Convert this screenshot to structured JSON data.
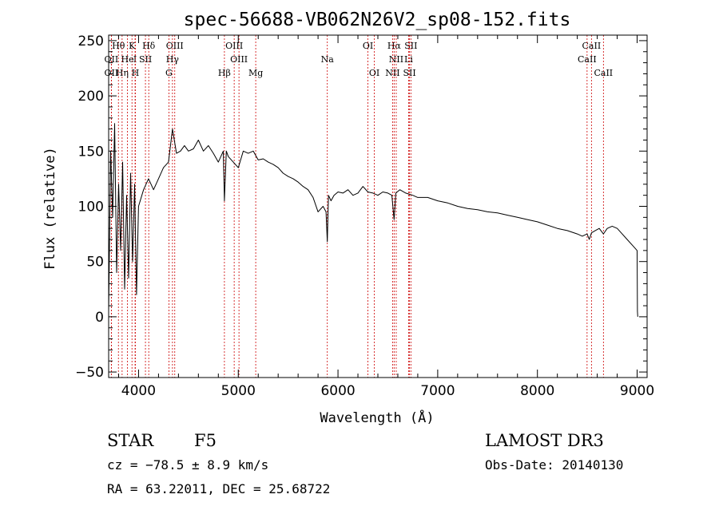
{
  "chart_data": {
    "type": "line",
    "title": "spec-56688-VB062N26V2_sp08-152.fits",
    "xlabel": "Wavelength (Å)",
    "ylabel": "Flux (relative)",
    "xlim": [
      3700,
      9100
    ],
    "ylim": [
      -55,
      255
    ],
    "xticks": [
      4000,
      5000,
      6000,
      7000,
      8000,
      9000
    ],
    "xtick_labels": [
      "4000",
      "5000",
      "6000",
      "7000",
      "8000",
      "9000"
    ],
    "yticks": [
      -50,
      0,
      50,
      100,
      150,
      200,
      250
    ],
    "ytick_labels": [
      "−50",
      "0",
      "50",
      "100",
      "150",
      "200",
      "250"
    ],
    "series": [
      {
        "name": "spectrum",
        "x": [
          3700,
          3720,
          3740,
          3760,
          3780,
          3800,
          3820,
          3840,
          3860,
          3880,
          3900,
          3920,
          3940,
          3960,
          3980,
          4000,
          4050,
          4100,
          4150,
          4200,
          4250,
          4300,
          4340,
          4380,
          4420,
          4460,
          4500,
          4550,
          4600,
          4650,
          4700,
          4750,
          4800,
          4850,
          4861,
          4880,
          4900,
          4950,
          5000,
          5050,
          5100,
          5150,
          5200,
          5250,
          5300,
          5350,
          5400,
          5450,
          5500,
          5550,
          5600,
          5650,
          5700,
          5750,
          5800,
          5850,
          5880,
          5893,
          5905,
          5930,
          5960,
          6000,
          6050,
          6100,
          6150,
          6200,
          6250,
          6300,
          6350,
          6400,
          6450,
          6500,
          6540,
          6563,
          6580,
          6620,
          6680,
          6750,
          6800,
          6900,
          7000,
          7100,
          7200,
          7300,
          7400,
          7500,
          7600,
          7700,
          7800,
          7900,
          8000,
          8100,
          8200,
          8300,
          8400,
          8450,
          8498,
          8520,
          8542,
          8580,
          8620,
          8662,
          8700,
          8750,
          8800,
          8850,
          8900,
          8950,
          8980,
          9000,
          9003,
          9006
        ],
        "values": [
          5,
          150,
          90,
          175,
          40,
          120,
          60,
          140,
          25,
          110,
          35,
          130,
          50,
          120,
          20,
          100,
          115,
          125,
          115,
          125,
          135,
          140,
          170,
          148,
          150,
          155,
          150,
          152,
          160,
          150,
          155,
          148,
          140,
          150,
          105,
          150,
          145,
          140,
          135,
          150,
          148,
          150,
          142,
          143,
          140,
          138,
          135,
          130,
          127,
          125,
          122,
          118,
          115,
          108,
          95,
          100,
          95,
          68,
          110,
          105,
          110,
          113,
          112,
          115,
          110,
          112,
          118,
          113,
          112,
          110,
          113,
          112,
          110,
          88,
          112,
          115,
          112,
          110,
          108,
          108,
          105,
          103,
          100,
          98,
          97,
          95,
          94,
          92,
          90,
          88,
          86,
          83,
          80,
          78,
          75,
          73,
          75,
          70,
          76,
          78,
          80,
          75,
          80,
          82,
          80,
          75,
          70,
          65,
          62,
          60,
          5,
          0
        ]
      }
    ],
    "lines": [
      {
        "label": "Hθ",
        "x": 3798,
        "row": 1
      },
      {
        "label": "K",
        "x": 3934,
        "row": 1
      },
      {
        "label": "Hδ",
        "x": 4102,
        "row": 1
      },
      {
        "label": "OIII",
        "x": 4363,
        "row": 1
      },
      {
        "label": "OIII",
        "x": 4959,
        "row": 1
      },
      {
        "label": "OI",
        "x": 6300,
        "row": 1
      },
      {
        "label": "Hα",
        "x": 6563,
        "row": 1
      },
      {
        "label": "SII",
        "x": 6731,
        "row": 1
      },
      {
        "label": "CaII",
        "x": 8542,
        "row": 1
      },
      {
        "label": "OII",
        "x": 3727,
        "row": 2
      },
      {
        "label": "He",
        "x": 3889,
        "row": 2
      },
      {
        "label": "I",
        "x": 3965,
        "row": 2
      },
      {
        "label": "SII",
        "x": 4069,
        "row": 2
      },
      {
        "label": "Hγ",
        "x": 4340,
        "row": 2
      },
      {
        "label": "OIII",
        "x": 5007,
        "row": 2
      },
      {
        "label": "Na",
        "x": 5893,
        "row": 2
      },
      {
        "label": "NII",
        "x": 6584,
        "row": 2
      },
      {
        "label": "Li",
        "x": 6708,
        "row": 2
      },
      {
        "label": "CaII",
        "x": 8498,
        "row": 2
      },
      {
        "label": "OII",
        "x": 3727,
        "row": 3
      },
      {
        "label": "Hη",
        "x": 3835,
        "row": 3
      },
      {
        "label": "H",
        "x": 3968,
        "row": 3
      },
      {
        "label": "G",
        "x": 4304,
        "row": 3
      },
      {
        "label": "Hβ",
        "x": 4861,
        "row": 3
      },
      {
        "label": "Mg",
        "x": 5175,
        "row": 3
      },
      {
        "label": "OI",
        "x": 6364,
        "row": 3
      },
      {
        "label": "NII",
        "x": 6548,
        "row": 3
      },
      {
        "label": "SII",
        "x": 6717,
        "row": 3
      },
      {
        "label": "CaII",
        "x": 8662,
        "row": 3
      }
    ]
  },
  "info": {
    "classification": "STAR",
    "subclass": "F5",
    "survey": "LAMOST DR3",
    "cz": "cz = −78.5 ± 8.9 km/s",
    "obs_date": "Obs-Date: 20140130",
    "coords": "RA =  63.22011, DEC =  25.68722"
  },
  "colors": {
    "spectrum": "#000000",
    "line_marker": "#cc0000",
    "axis": "#000000"
  }
}
